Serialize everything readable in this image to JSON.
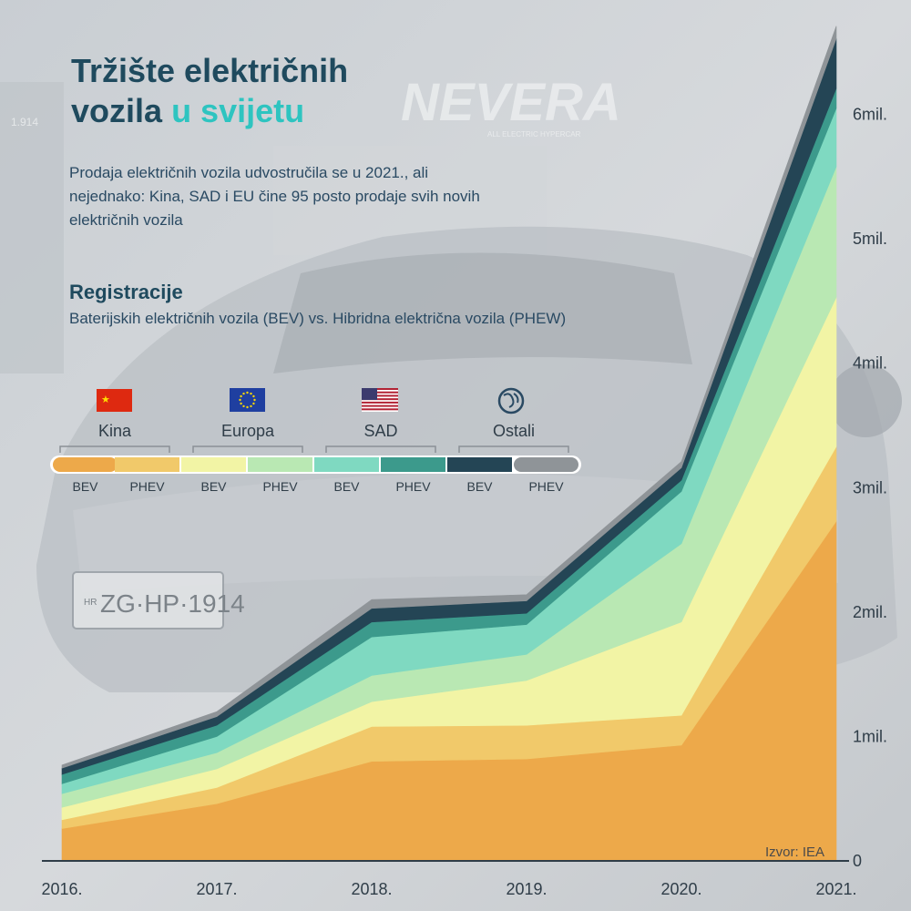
{
  "header": {
    "title_line1": "Tržište električnih",
    "title_line2a": "vozila",
    "title_line2b": "u svijetu",
    "subtitle": "Prodaja električnih vozila udvostručila se u 2021., ali nejednako: Kina, SAD i EU čine 95 posto prodaje svih novih električnih vozila"
  },
  "section": {
    "title": "Registracije",
    "subtitle": "Baterijskih električnih vozila (BEV) vs. Hibridna električna vozila (PHEW)"
  },
  "background": {
    "logo_text": "NEVERA",
    "logo_tagline": "ALL ELECTRIC HYPERCAR",
    "plate": "ZG·HP·1914",
    "plate_country": "HR",
    "panel_number": "1.914"
  },
  "source": "Izvor: IEA",
  "colors": {
    "title": "#1f4a5e",
    "accent": "#2ec4c0",
    "china_bev": "#eda94a",
    "china_phev": "#f1c96a",
    "europe_bev": "#f2f4a5",
    "europe_phev": "#b9e8b3",
    "usa_bev": "#7fd9c1",
    "usa_phev": "#3c9a8c",
    "other_bev": "#244555",
    "other_phev": "#8f9498"
  },
  "legend": {
    "regions": [
      {
        "name": "Kina",
        "icon": "china-flag-icon"
      },
      {
        "name": "Europa",
        "icon": "eu-flag-icon"
      },
      {
        "name": "SAD",
        "icon": "usa-flag-icon"
      },
      {
        "name": "Ostali",
        "icon": "globe-icon"
      }
    ],
    "types": [
      "BEV",
      "PHEV",
      "BEV",
      "PHEV",
      "BEV",
      "PHEV",
      "BEV",
      "PHEV"
    ]
  },
  "chart_data": {
    "type": "area",
    "stacked": true,
    "x": [
      "2016.",
      "2017.",
      "2018.",
      "2019.",
      "2020.",
      "2021."
    ],
    "y_ticks": [
      {
        "value": 0,
        "label": "0"
      },
      {
        "value": 1000000,
        "label": "1mil."
      },
      {
        "value": 2000000,
        "label": "2mil."
      },
      {
        "value": 3000000,
        "label": "3mil."
      },
      {
        "value": 4000000,
        "label": "4mil."
      },
      {
        "value": 5000000,
        "label": "5mil."
      },
      {
        "value": 6000000,
        "label": "6mil."
      }
    ],
    "ylim": [
      0,
      6700000
    ],
    "y_axis_side": "right",
    "grid": false,
    "series": [
      {
        "name": "Kina BEV",
        "color": "#eda94a",
        "values": [
          260000,
          460000,
          800000,
          820000,
          930000,
          2730000
        ]
      },
      {
        "name": "Kina PHEV",
        "color": "#f1c96a",
        "values": [
          70000,
          130000,
          280000,
          270000,
          240000,
          600000
        ]
      },
      {
        "name": "Europa BEV",
        "color": "#f2f4a5",
        "values": [
          100000,
          150000,
          200000,
          360000,
          750000,
          1200000
        ]
      },
      {
        "name": "Europa PHEV",
        "color": "#b9e8b3",
        "values": [
          110000,
          130000,
          210000,
          210000,
          630000,
          1050000
        ]
      },
      {
        "name": "SAD BEV",
        "color": "#7fd9c1",
        "values": [
          80000,
          130000,
          310000,
          240000,
          420000,
          470000
        ]
      },
      {
        "name": "SAD PHEV",
        "color": "#3c9a8c",
        "values": [
          75000,
          90000,
          120000,
          90000,
          90000,
          160000
        ]
      },
      {
        "name": "Ostali BEV",
        "color": "#244555",
        "values": [
          50000,
          70000,
          110000,
          100000,
          100000,
          400000
        ]
      },
      {
        "name": "Ostali PHEV",
        "color": "#8f9498",
        "values": [
          25000,
          40000,
          70000,
          50000,
          50000,
          100000
        ]
      }
    ]
  }
}
